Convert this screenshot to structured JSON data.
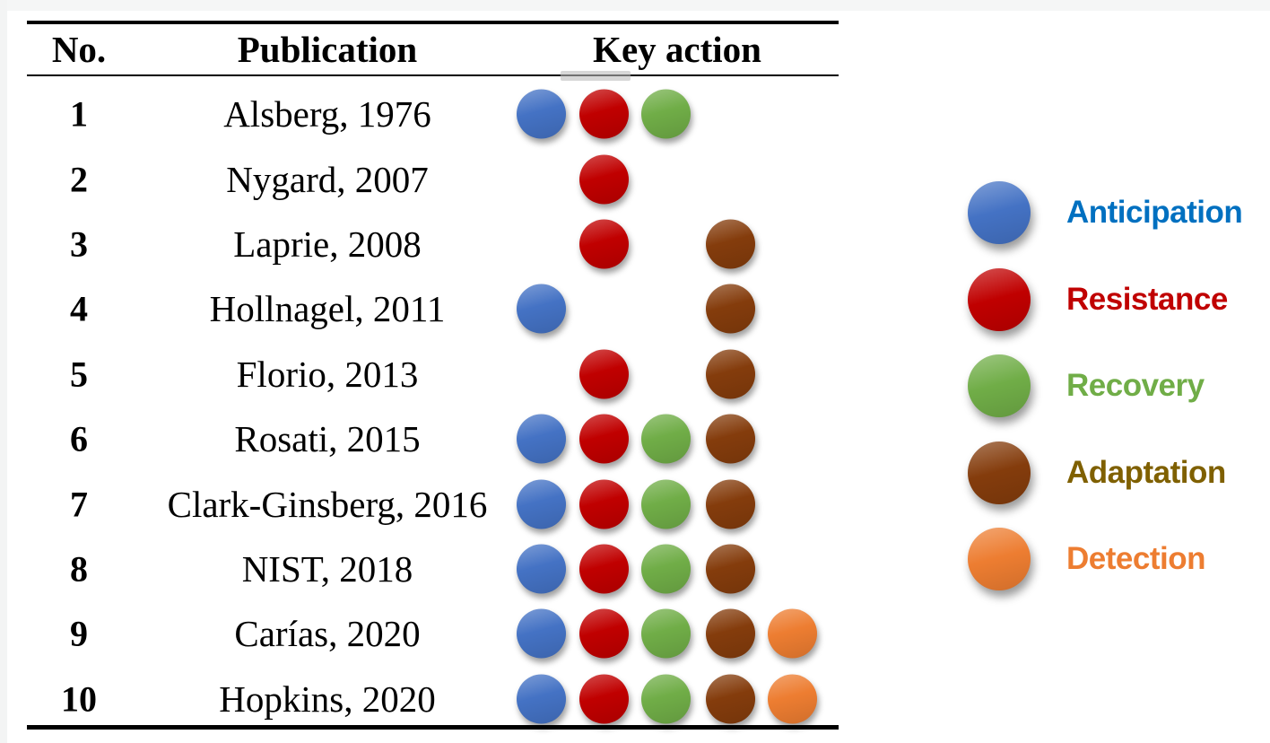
{
  "legend": {
    "items": [
      {
        "key": "anticipation",
        "label": "Anticipation",
        "dot_color": "#4472C4",
        "text_color": "#0070C0"
      },
      {
        "key": "resistance",
        "label": "Resistance",
        "dot_color": "#C00000",
        "text_color": "#C00000"
      },
      {
        "key": "recovery",
        "label": "Recovery",
        "dot_color": "#70AD47",
        "text_color": "#70AD47"
      },
      {
        "key": "adaptation",
        "label": "Adaptation",
        "dot_color": "#843C0C",
        "text_color": "#7F6000"
      },
      {
        "key": "detection",
        "label": "Detection",
        "dot_color": "#ED7D31",
        "text_color": "#ED7D31"
      }
    ]
  },
  "chart_data": {
    "type": "table",
    "title": "",
    "columns": [
      "No.",
      "Publication",
      "Key action"
    ],
    "key_action_categories": [
      "Anticipation",
      "Resistance",
      "Recovery",
      "Adaptation",
      "Detection"
    ],
    "legend_position": "right",
    "rows": [
      {
        "no": "1",
        "publication": "Alsberg, 1976",
        "key_actions": [
          "Anticipation",
          "Resistance",
          "Recovery"
        ]
      },
      {
        "no": "2",
        "publication": "Nygard, 2007",
        "key_actions": [
          "Resistance"
        ]
      },
      {
        "no": "3",
        "publication": "Laprie, 2008",
        "key_actions": [
          "Resistance",
          "Adaptation"
        ]
      },
      {
        "no": "4",
        "publication": "Hollnagel, 2011",
        "key_actions": [
          "Anticipation",
          "Adaptation"
        ]
      },
      {
        "no": "5",
        "publication": "Florio, 2013",
        "key_actions": [
          "Resistance",
          "Adaptation"
        ]
      },
      {
        "no": "6",
        "publication": "Rosati, 2015",
        "key_actions": [
          "Anticipation",
          "Resistance",
          "Recovery",
          "Adaptation"
        ]
      },
      {
        "no": "7",
        "publication": "Clark-Ginsberg, 2016",
        "key_actions": [
          "Anticipation",
          "Resistance",
          "Recovery",
          "Adaptation"
        ]
      },
      {
        "no": "8",
        "publication": "NIST, 2018",
        "key_actions": [
          "Anticipation",
          "Resistance",
          "Recovery",
          "Adaptation"
        ]
      },
      {
        "no": "9",
        "publication": "Carías, 2020",
        "key_actions": [
          "Anticipation",
          "Resistance",
          "Recovery",
          "Adaptation",
          "Detection"
        ]
      },
      {
        "no": "10",
        "publication": "Hopkins, 2020",
        "key_actions": [
          "Anticipation",
          "Resistance",
          "Recovery",
          "Adaptation",
          "Detection"
        ]
      }
    ]
  }
}
